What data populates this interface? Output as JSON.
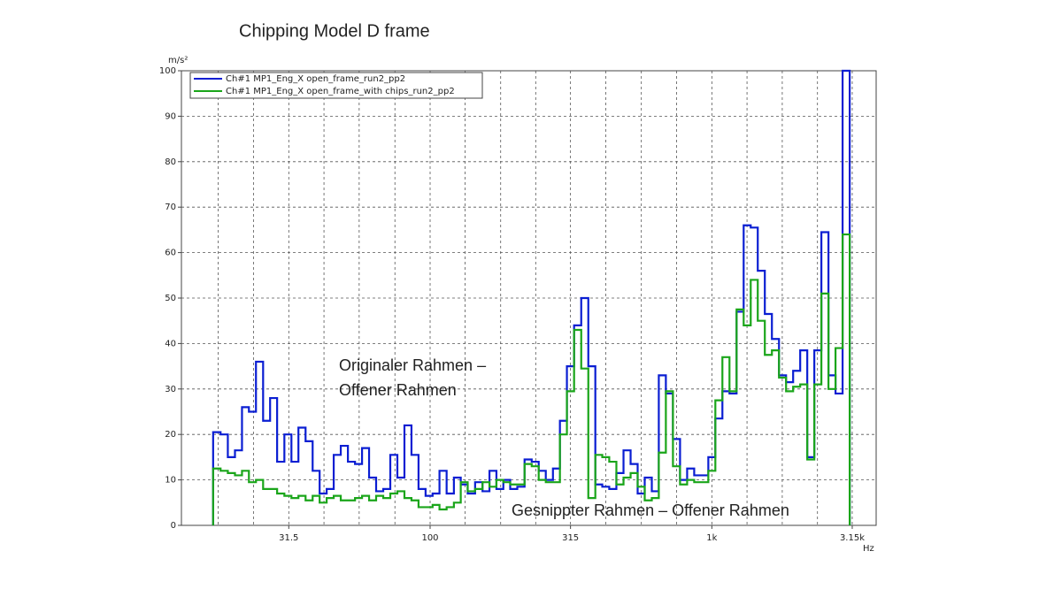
{
  "chart_data": {
    "type": "step",
    "title": "Chipping Model D frame",
    "y_unit": "m/s²",
    "x_unit": "Hz",
    "log_x": true,
    "grid": true,
    "legend": "upper left",
    "x": [
      17.5,
      18.6,
      19.7,
      20.9,
      22.1,
      23.4,
      24.8,
      26.3,
      27.8,
      29.5,
      31.3,
      33.1,
      35.1,
      37.2,
      39.4,
      41.7,
      44.2,
      46.8,
      49.6,
      52.6,
      55.7,
      59.0,
      62.5,
      66.2,
      70.2,
      74.3,
      78.8,
      83.4,
      88.4,
      93.6,
      99.2,
      105,
      111,
      118,
      125,
      132,
      140,
      149,
      158,
      167,
      177,
      187,
      198,
      210,
      223,
      236,
      250,
      265,
      281,
      297,
      315,
      334,
      354,
      375,
      397,
      420,
      445,
      472,
      500,
      530,
      561,
      595,
      630,
      667,
      707,
      749,
      794,
      841,
      891,
      944,
      1000,
      1059,
      1122,
      1189,
      1260,
      1335,
      1414,
      1498,
      1587,
      1682,
      1782,
      1888,
      2000,
      2119,
      2245,
      2378,
      2520,
      2670,
      2828,
      2997
    ],
    "series": [
      {
        "name": "Ch#1  MP1_Eng_X  open_frame_run2_pp2",
        "color": "#0a1ed2",
        "values": [
          20.5,
          20,
          15,
          16.5,
          26,
          25,
          36,
          23,
          28,
          14,
          20,
          14,
          21.5,
          18.5,
          12,
          7,
          8,
          15.5,
          17.5,
          14,
          13.5,
          17,
          10.5,
          7.5,
          8,
          15.5,
          10.5,
          22,
          15.5,
          8,
          6.5,
          7,
          12,
          7,
          10.5,
          9,
          7,
          9.5,
          7.5,
          12,
          8,
          10,
          8,
          8.5,
          14.5,
          14,
          12,
          10,
          12.5,
          23,
          35,
          44,
          50,
          35,
          9,
          8.5,
          8,
          11.5,
          16.5,
          13.5,
          7,
          10.5,
          7.5,
          33,
          29,
          19,
          10,
          12.5,
          11,
          11,
          15,
          23.5,
          29.5,
          29,
          47,
          66,
          65.5,
          56,
          46.5,
          41,
          33,
          31.5,
          34,
          38.5,
          15,
          38.5,
          64.5,
          33,
          29,
          100
        ]
      },
      {
        "name": "Ch#1  MP1_Eng_X  open_frame_with chips_run2_pp2",
        "color": "#1aa51a",
        "values": [
          12.5,
          12,
          11.5,
          11,
          12,
          9.5,
          10,
          8,
          8,
          7,
          6.5,
          6,
          6.5,
          5.5,
          6.5,
          5,
          6,
          6.5,
          5.5,
          5.5,
          6,
          6.5,
          5.5,
          6.5,
          6,
          7,
          7.5,
          6,
          5.5,
          4,
          4,
          4.5,
          3.5,
          4,
          5,
          9.5,
          7.5,
          8,
          9.5,
          8.5,
          10,
          9.5,
          9,
          9,
          13.5,
          13,
          10,
          9.5,
          9.5,
          20,
          29.5,
          43,
          34.5,
          6,
          15.5,
          15,
          14,
          9,
          10.5,
          11.5,
          8.5,
          5.5,
          6,
          16,
          29.5,
          13,
          9,
          10,
          9.5,
          9.5,
          12,
          27.5,
          37,
          29.5,
          47.5,
          44,
          54,
          45,
          37.5,
          38.5,
          32.5,
          29.5,
          30.5,
          31,
          14.5,
          31,
          51,
          30,
          39,
          64
        ]
      }
    ],
    "xlim": [
      13.1,
      3830
    ],
    "xticks": [
      31.5,
      100,
      315,
      {
        "value": 1000,
        "label": "1k"
      },
      {
        "value": 3150,
        "label": "3.15k"
      }
    ],
    "x_minor_grid": [
      17.7,
      23.6,
      42,
      56,
      75,
      133,
      178,
      237,
      420,
      562,
      750,
      1333,
      1778,
      2371
    ],
    "ylim": [
      0,
      100
    ],
    "yticks": [
      0,
      10,
      20,
      30,
      40,
      50,
      60,
      70,
      80,
      90,
      100
    ],
    "annotations": [
      {
        "lines": [
          "Originaler Rahmen –",
          "Offener Rahmen"
        ],
        "color": "#7f8fe3"
      },
      {
        "lines": [
          "Gesnippter Rahmen – Offener Rahmen"
        ],
        "color": "#22b14c"
      }
    ]
  }
}
